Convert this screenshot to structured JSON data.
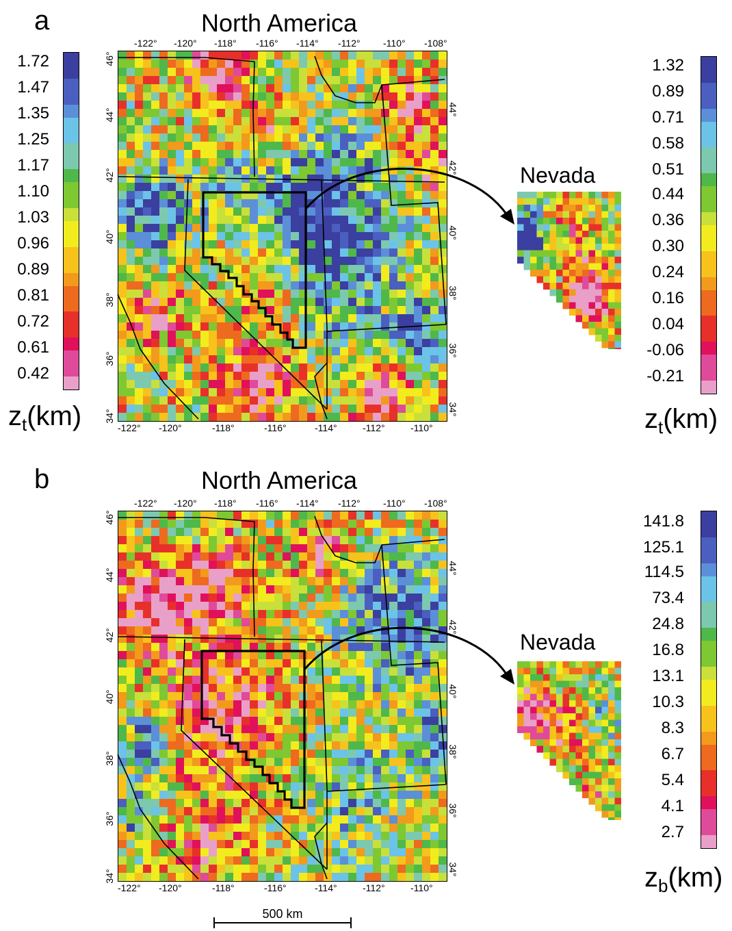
{
  "panel_a": {
    "letter": "a",
    "title": "North America",
    "top_ticks": [
      "-122°",
      "-120°",
      "-118°",
      "-116°",
      "-114°",
      "-112°",
      "-110°",
      "-108°"
    ],
    "bottom_ticks": [
      "-122°",
      "-120°",
      "-118°",
      "-116°",
      "-114°",
      "-112°",
      "-110°"
    ],
    "left_ticks": [
      "46°",
      "44°",
      "42°",
      "40°",
      "38°",
      "36°",
      "34°"
    ],
    "right_ticks": [
      "44°",
      "42°",
      "40°",
      "38°",
      "36°",
      "34°"
    ],
    "colorbar_labels": [
      "1.72",
      "1.47",
      "1.35",
      "1.25",
      "1.17",
      "1.10",
      "1.03",
      "0.96",
      "0.89",
      "0.81",
      "0.72",
      "0.61",
      "0.42"
    ],
    "unit_var": "z",
    "unit_sub": "t",
    "unit_rest": "(km)",
    "inset_title": "Nevada",
    "inset_colorbar_labels": [
      "1.32",
      "0.89",
      "0.71",
      "0.58",
      "0.51",
      "0.44",
      "0.36",
      "0.30",
      "0.24",
      "0.16",
      "0.04",
      "-0.06",
      "-0.21"
    ],
    "inset_unit_var": "z",
    "inset_unit_sub": "t",
    "inset_unit_rest": "(km)"
  },
  "panel_b": {
    "letter": "b",
    "title": "North America",
    "top_ticks": [
      "-122°",
      "-120°",
      "-118°",
      "-116°",
      "-114°",
      "-112°",
      "-110°",
      "-108°"
    ],
    "bottom_ticks": [
      "-122°",
      "-120°",
      "-118°",
      "-116°",
      "-114°",
      "-112°",
      "-110°"
    ],
    "left_ticks": [
      "46°",
      "44°",
      "42°",
      "40°",
      "38°",
      "36°",
      "34°"
    ],
    "right_ticks": [
      "44°",
      "42°",
      "40°",
      "38°",
      "36°",
      "34°"
    ],
    "inset_title": "Nevada",
    "colorbar_labels": [
      "141.8",
      "125.1",
      "114.5",
      "73.4",
      "24.8",
      "16.8",
      "13.1",
      "10.3",
      "8.3",
      "6.7",
      "5.4",
      "4.1",
      "2.7"
    ],
    "unit_var": "z",
    "unit_sub": "b",
    "unit_rest": "(km)"
  },
  "scale_bar": {
    "label": "500 km"
  },
  "palette": [
    "#3b3fa0",
    "#4a5fc0",
    "#5b8fd8",
    "#6cc3e8",
    "#7cc9b0",
    "#4fb84a",
    "#7ec832",
    "#c9e03a",
    "#f2ec1e",
    "#f7c21b",
    "#f29a1c",
    "#ee6a1f",
    "#e8302a",
    "#e0115a",
    "#e04a9a",
    "#e8a0c8"
  ]
}
